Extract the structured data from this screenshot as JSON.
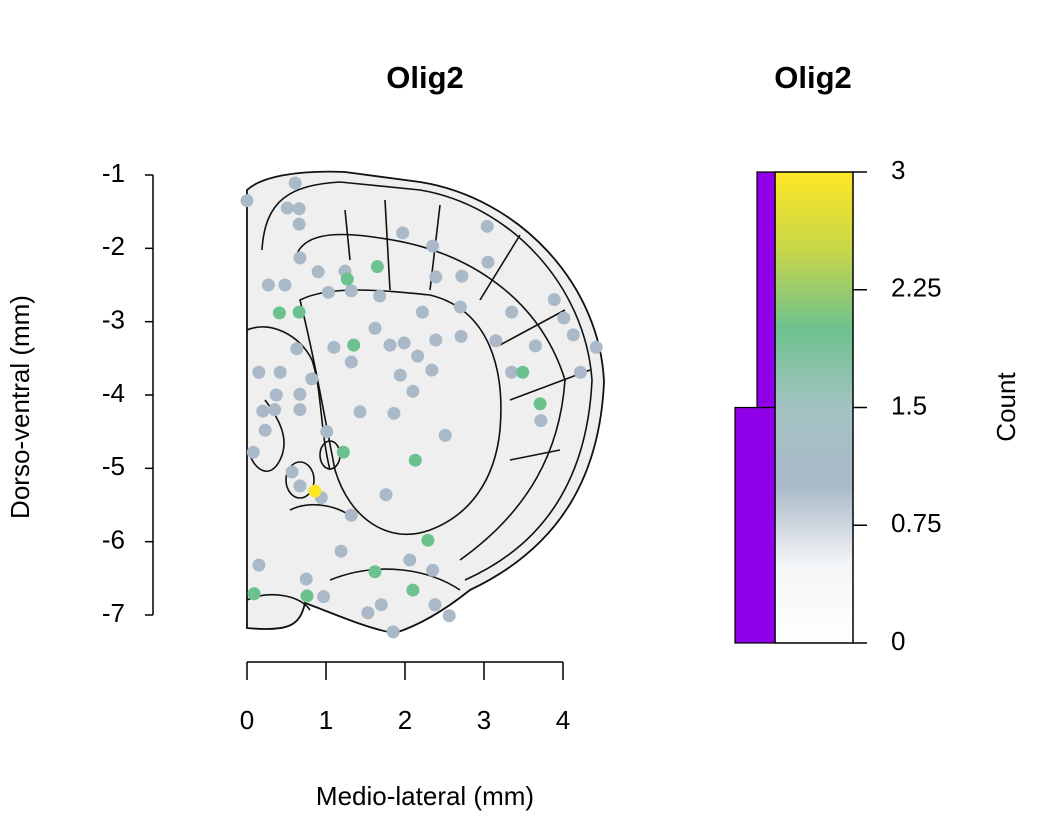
{
  "chart_data": [
    {
      "type": "scatter",
      "title": "Olig2",
      "xlabel": "Medio-lateral (mm)",
      "ylabel": "Dorso-ventral (mm)",
      "xlim": [
        0,
        4
      ],
      "ylim": [
        -7,
        -1
      ],
      "xticks": [
        0,
        1,
        2,
        3,
        4
      ],
      "yticks": [
        -7,
        -6,
        -5,
        -4,
        -3,
        -2,
        -1
      ],
      "x": [
        0.0,
        0.61,
        0.51,
        0.66,
        0.66,
        0.27,
        0.48,
        0.67,
        0.9,
        1.03,
        1.24,
        1.32,
        1.68,
        1.97,
        2.35,
        2.72,
        3.04,
        3.05,
        2.39,
        2.22,
        3.35,
        3.89,
        4.01,
        4.13,
        4.42,
        4.22,
        3.65,
        3.15,
        2.71,
        2.7,
        2.39,
        2.16,
        1.99,
        1.81,
        1.62,
        1.1,
        1.32,
        2.34,
        1.94,
        2.1,
        1.86,
        1.43,
        2.51,
        3.35,
        3.72,
        0.15,
        0.42,
        0.63,
        0.82,
        0.67,
        0.37,
        0.2,
        0.35,
        0.67,
        0.23,
        0.08,
        1.01,
        0.57,
        0.67,
        0.94,
        1.32,
        1.76,
        1.19,
        0.15,
        0.75,
        0.97,
        1.53,
        1.7,
        1.85,
        2.06,
        2.35,
        2.38,
        2.56,
        1.65,
        1.27,
        0.41,
        0.66,
        1.35,
        3.49,
        3.71,
        1.22,
        2.13,
        2.29,
        1.62,
        2.1,
        0.76,
        0.09,
        0.86
      ],
      "y": [
        -1.35,
        -1.11,
        -1.45,
        -1.46,
        -1.67,
        -2.5,
        -2.5,
        -2.13,
        -2.32,
        -2.6,
        -2.31,
        -2.58,
        -2.65,
        -1.79,
        -1.97,
        -2.38,
        -1.7,
        -2.19,
        -2.39,
        -2.87,
        -2.87,
        -2.7,
        -2.95,
        -3.18,
        -3.35,
        -3.69,
        -3.33,
        -3.26,
        -3.2,
        -2.8,
        -3.25,
        -3.47,
        -3.29,
        -3.32,
        -3.09,
        -3.35,
        -3.55,
        -3.66,
        -3.73,
        -3.95,
        -4.25,
        -4.23,
        -4.55,
        -3.69,
        -4.35,
        -3.69,
        -3.69,
        -3.37,
        -3.78,
        -3.99,
        -4.0,
        -4.22,
        -4.2,
        -4.2,
        -4.48,
        -4.78,
        -4.5,
        -5.05,
        -5.24,
        -5.4,
        -5.64,
        -5.36,
        -6.13,
        -6.32,
        -6.51,
        -6.75,
        -6.97,
        -6.86,
        -7.23,
        -6.25,
        -6.39,
        -6.86,
        -7.01,
        -2.25,
        -2.42,
        -2.88,
        -2.87,
        -3.32,
        -3.69,
        -4.12,
        -4.78,
        -4.89,
        -5.98,
        -6.41,
        -6.66,
        -6.74,
        -6.71,
        -5.31
      ],
      "counts": [
        1,
        1,
        1,
        1,
        1,
        1,
        1,
        1,
        1,
        1,
        1,
        1,
        1,
        1,
        1,
        1,
        1,
        1,
        1,
        1,
        1,
        1,
        1,
        1,
        1,
        1,
        1,
        1,
        1,
        1,
        1,
        1,
        1,
        1,
        1,
        1,
        1,
        1,
        1,
        1,
        1,
        1,
        1,
        1,
        1,
        1,
        1,
        1,
        1,
        1,
        1,
        1,
        1,
        1,
        1,
        1,
        1,
        1,
        1,
        1,
        1,
        1,
        1,
        1,
        1,
        1,
        1,
        1,
        1,
        1,
        1,
        1,
        1,
        2,
        2,
        2,
        2,
        2,
        2,
        2,
        2,
        2,
        2,
        2,
        2,
        2,
        2,
        3
      ]
    },
    {
      "type": "colorbar",
      "title": "Olig2",
      "ylabel": "Count",
      "ylim": [
        0,
        3
      ],
      "yticks": [
        0,
        0.75,
        1.5,
        2.25,
        3
      ],
      "colormap": [
        {
          "value": 0,
          "color": "#ffffff"
        },
        {
          "value": 0.5,
          "color": "#f3f5f7"
        },
        {
          "value": 1,
          "color": "#a9b9c8"
        },
        {
          "value": 1.5,
          "color": "#a3c2c2"
        },
        {
          "value": 2,
          "color": "#6cc28e"
        },
        {
          "value": 2.5,
          "color": "#c8d64a"
        },
        {
          "value": 3,
          "color": "#fde725"
        }
      ],
      "bins": [
        0,
        1.5,
        3
      ],
      "hist_counts": [
        1,
        0.45
      ],
      "hist_color": "#8f00e8"
    }
  ]
}
